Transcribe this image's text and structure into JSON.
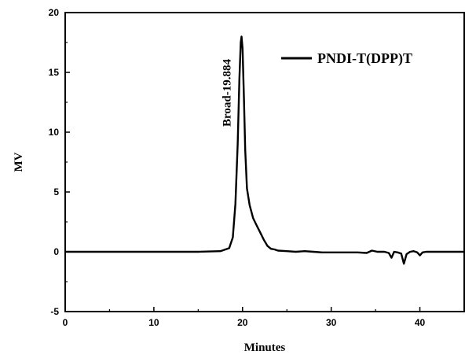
{
  "chart_data": {
    "type": "line",
    "title": "",
    "xlabel": "Minutes",
    "ylabel": "MV",
    "xlim": [
      0,
      45
    ],
    "ylim": [
      -5,
      20
    ],
    "xticks": [
      0,
      10,
      20,
      30,
      40
    ],
    "yticks": [
      -5,
      0,
      5,
      10,
      15,
      20
    ],
    "grid": false,
    "legend_position": "top-right",
    "series": [
      {
        "name": "PNDI-T(DPP)T",
        "color": "#000000",
        "x": [
          0,
          5,
          10,
          15,
          17.5,
          18.5,
          18.9,
          19.2,
          19.45,
          19.65,
          19.8,
          19.884,
          20.0,
          20.15,
          20.3,
          20.5,
          20.8,
          21.2,
          21.6,
          22.0,
          22.4,
          22.8,
          23.2,
          23.6,
          24.0,
          25.0,
          26.0,
          27.0,
          28.0,
          29.0,
          30.0,
          31.0,
          32.0,
          33.0,
          34.0,
          34.6,
          35.2,
          36.0,
          36.5,
          36.8,
          37.1,
          37.5,
          37.9,
          38.2,
          38.5,
          38.9,
          39.3,
          39.7,
          40.0,
          40.3,
          40.7,
          41.5,
          43.0,
          45.0
        ],
        "y": [
          0,
          0,
          0,
          0,
          0.05,
          0.3,
          1.2,
          4.0,
          9.0,
          14.5,
          17.5,
          18.0,
          17.0,
          13.0,
          8.5,
          5.3,
          3.9,
          2.8,
          2.2,
          1.6,
          1.0,
          0.5,
          0.25,
          0.2,
          0.1,
          0.05,
          0.0,
          0.05,
          0.0,
          -0.05,
          -0.05,
          -0.05,
          -0.05,
          -0.05,
          -0.1,
          0.1,
          0.0,
          0.0,
          -0.1,
          -0.5,
          0.0,
          -0.05,
          -0.15,
          -1.0,
          -0.2,
          0.0,
          0.05,
          -0.05,
          -0.3,
          -0.05,
          0.0,
          0.0,
          0.0,
          0.0
        ]
      }
    ],
    "annotations": [
      {
        "text": "Broad-19.884",
        "x": 19.884,
        "y": 18.0,
        "orientation": "vertical"
      }
    ]
  }
}
